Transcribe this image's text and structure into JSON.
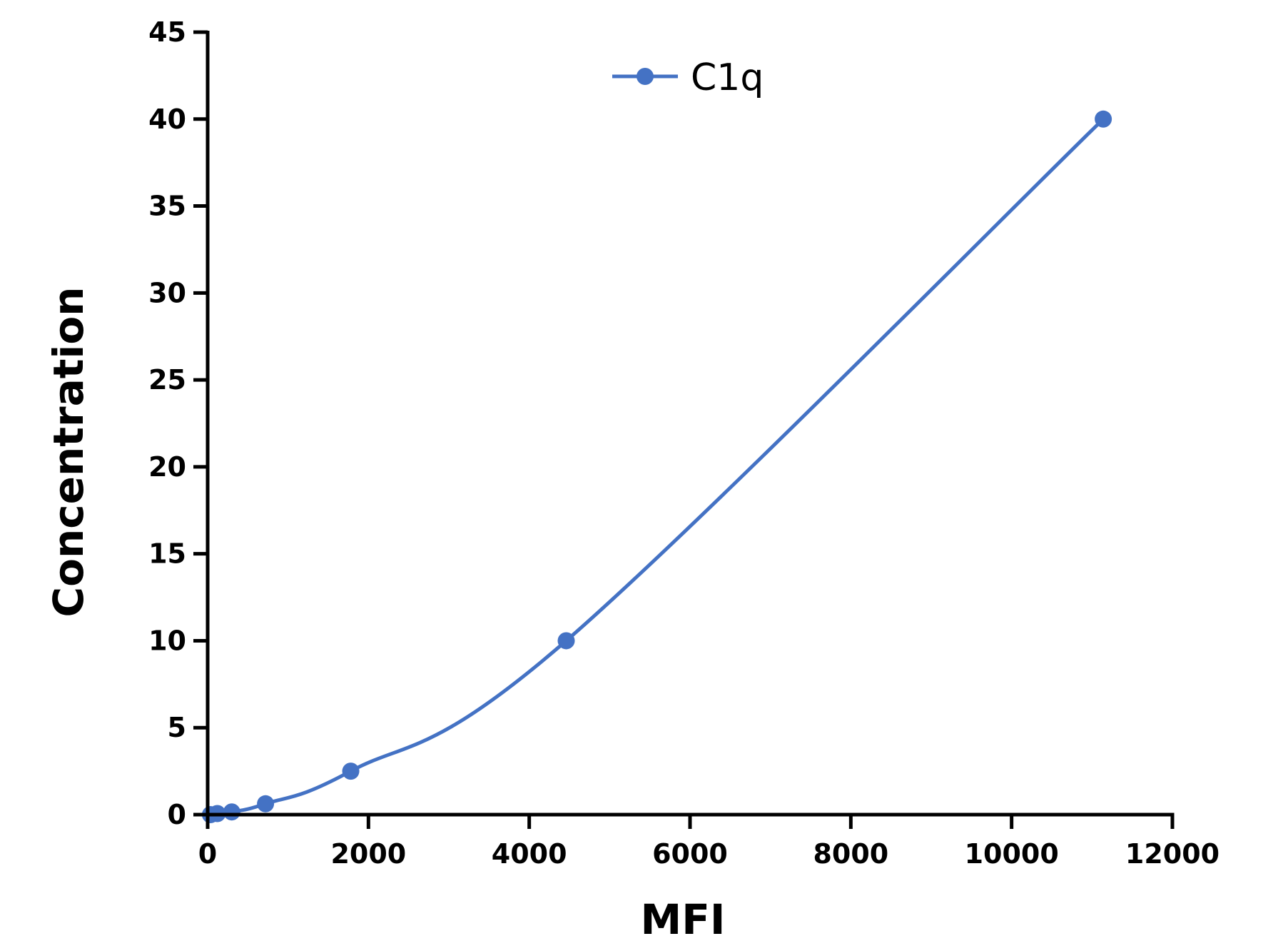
{
  "chart_data": {
    "type": "line",
    "xlabel": "MFI",
    "ylabel": "Concentration",
    "xlim": [
      0,
      12000
    ],
    "ylim": [
      0,
      45
    ],
    "x_ticks": [
      0,
      2000,
      4000,
      6000,
      8000,
      10000,
      12000
    ],
    "x_tick_labels": [
      "0",
      "2000",
      "4000",
      "6000",
      "8000",
      "10000",
      "12000"
    ],
    "y_ticks": [
      0,
      5,
      10,
      15,
      20,
      25,
      30,
      35,
      40,
      45
    ],
    "y_tick_labels": [
      "0",
      "5",
      "10",
      "15",
      "20",
      "25",
      "30",
      "35",
      "40",
      "45"
    ],
    "grid": false,
    "legend_position": "top-center",
    "series": [
      {
        "name": "C1q",
        "color": "#4472C4",
        "marker": "circle",
        "smooth": true,
        "x": [
          35,
          120,
          300,
          720,
          1780,
          4460,
          11140
        ],
        "y": [
          0,
          0.0625,
          0.156,
          0.625,
          2.5,
          10,
          40
        ]
      }
    ]
  }
}
